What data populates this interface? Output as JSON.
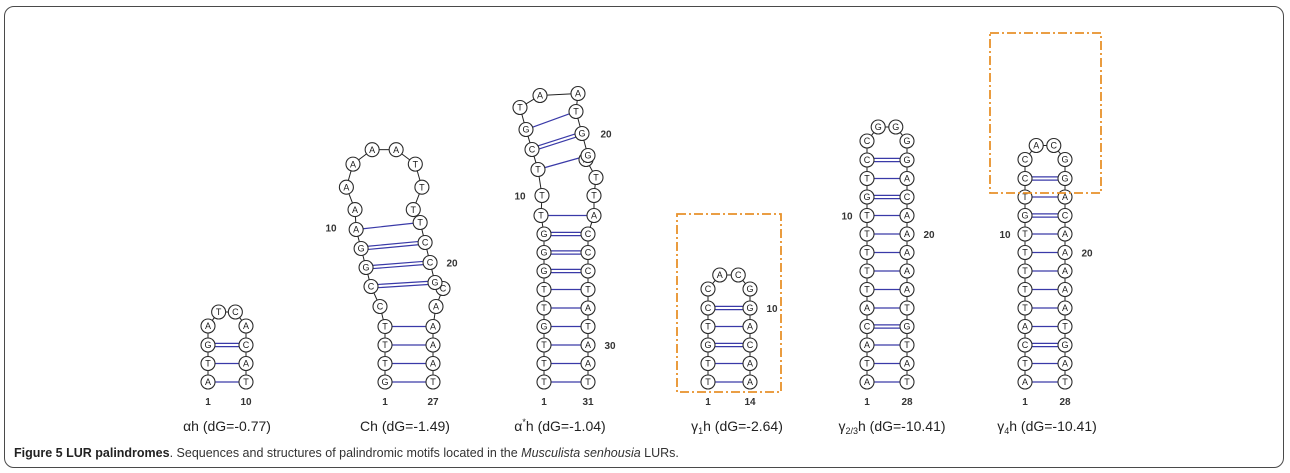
{
  "caption": {
    "label": "Figure 5 LUR palindromes",
    "text_before": ". Sequences and structures of palindromic motifs located in the ",
    "species": "Musculista senhousia",
    "text_after": " LURs."
  },
  "colors": {
    "base_pair": "#3a3aa8",
    "highlight_box": "#e8912a",
    "backbone": "#222222"
  },
  "structures": [
    {
      "id": "alpha-h",
      "label_main": "αh",
      "label_dg": " (dG=-0.77)",
      "highlight": false,
      "stem": [
        [
          "A",
          "T"
        ],
        [
          "T",
          "A"
        ],
        [
          "G",
          "C"
        ]
      ],
      "pair_types": [
        "single",
        "single",
        "double"
      ],
      "loop": [
        "A",
        "T",
        "C",
        "A"
      ],
      "position_labels": [
        "1",
        "10"
      ],
      "side_labels": []
    },
    {
      "id": "c-h",
      "label_main": "Ch",
      "label_dg": " (dG=-1.49)",
      "highlight": false,
      "stem": [
        [
          "G",
          "T"
        ],
        [
          "T",
          "A"
        ],
        [
          "T",
          "A"
        ],
        [
          "T",
          "A"
        ]
      ],
      "pair_types": [
        "single",
        "single",
        "single",
        "single"
      ],
      "inner_loop": {
        "left": [
          "C"
        ],
        "right": [
          "A",
          "C"
        ]
      },
      "stem2": [
        [
          "C",
          "G"
        ],
        [
          "G",
          "C"
        ],
        [
          "G",
          "C"
        ],
        [
          "A",
          "T"
        ]
      ],
      "pair_types2": [
        "double",
        "double",
        "double",
        "single"
      ],
      "loop": [
        "A",
        "A",
        "A",
        "A",
        "A",
        "T",
        "T",
        "T"
      ],
      "position_labels": [
        "1",
        "27"
      ],
      "side_labels": [
        "10",
        "20"
      ]
    },
    {
      "id": "alpha-star-h",
      "label_main": "α",
      "label_sup": "*",
      "label_after": "h",
      "label_dg": " (dG=-1.04)",
      "highlight": false,
      "stem": [
        [
          "T",
          "T"
        ],
        [
          "T",
          "A"
        ],
        [
          "T",
          "A"
        ],
        [
          "G",
          "T"
        ],
        [
          "T",
          "A"
        ],
        [
          "T",
          "T"
        ],
        [
          "G",
          "C"
        ],
        [
          "G",
          "C"
        ],
        [
          "G",
          "C"
        ],
        [
          "T",
          "A"
        ]
      ],
      "pair_types": [
        "single",
        "single",
        "single",
        "single",
        "single",
        "single",
        "double",
        "double",
        "double",
        "single"
      ],
      "inner_loop": {
        "left": [
          "T"
        ],
        "right": [
          "T",
          "T",
          "A"
        ]
      },
      "stem2": [
        [
          "T",
          "G"
        ],
        [
          "C",
          "G"
        ],
        [
          "G",
          "T"
        ]
      ],
      "pair_types2": [
        "single",
        "double",
        "single"
      ],
      "loop": [
        "T",
        "A",
        "A"
      ],
      "position_labels": [
        "1",
        "31"
      ],
      "side_labels": [
        "10",
        "20",
        "30"
      ]
    },
    {
      "id": "gamma1-h",
      "label_main": "γ",
      "label_sub": "1",
      "label_after": "h",
      "label_dg": " (dG=-2.64)",
      "highlight": true,
      "stem": [
        [
          "T",
          "A"
        ],
        [
          "T",
          "A"
        ],
        [
          "G",
          "C"
        ],
        [
          "T",
          "A"
        ],
        [
          "C",
          "G"
        ]
      ],
      "pair_types": [
        "single",
        "single",
        "double",
        "single",
        "double"
      ],
      "loop": [
        "C",
        "A",
        "C",
        "G"
      ],
      "position_labels": [
        "1",
        "14"
      ],
      "side_labels": [
        "10"
      ]
    },
    {
      "id": "gamma23-h",
      "label_main": "γ",
      "label_sub": "2/3",
      "label_after": "h",
      "label_dg": " (dG=-10.41)",
      "highlight": false,
      "stem": [
        [
          "A",
          "T"
        ],
        [
          "T",
          "A"
        ],
        [
          "A",
          "T"
        ],
        [
          "C",
          "G"
        ],
        [
          "A",
          "T"
        ],
        [
          "T",
          "A"
        ],
        [
          "T",
          "A"
        ],
        [
          "T",
          "A"
        ],
        [
          "T",
          "A"
        ],
        [
          "T",
          "A"
        ],
        [
          "G",
          "C"
        ],
        [
          "T",
          "A"
        ],
        [
          "C",
          "G"
        ]
      ],
      "pair_types": [
        "single",
        "single",
        "single",
        "double",
        "single",
        "single",
        "single",
        "single",
        "single",
        "single",
        "double",
        "single",
        "double"
      ],
      "loop": [
        "C",
        "G",
        "G",
        "G"
      ],
      "position_labels": [
        "1",
        "28"
      ],
      "side_labels": [
        "10",
        "20"
      ]
    },
    {
      "id": "gamma4-h",
      "label_main": "γ",
      "label_sub": "4",
      "label_after": "h",
      "label_dg": " (dG=-10.41)",
      "highlight": true,
      "stem": [
        [
          "A",
          "T"
        ],
        [
          "T",
          "A"
        ],
        [
          "C",
          "G"
        ],
        [
          "A",
          "T"
        ],
        [
          "T",
          "A"
        ],
        [
          "T",
          "A"
        ],
        [
          "T",
          "A"
        ],
        [
          "T",
          "A"
        ],
        [
          "T",
          "A"
        ],
        [
          "G",
          "C"
        ],
        [
          "T",
          "A"
        ],
        [
          "C",
          "G"
        ]
      ],
      "pair_types": [
        "single",
        "single",
        "double",
        "single",
        "single",
        "single",
        "single",
        "single",
        "single",
        "double",
        "single",
        "double"
      ],
      "loop": [
        "C",
        "A",
        "C",
        "G"
      ],
      "position_labels": [
        "1",
        "28"
      ],
      "side_labels": [
        "10",
        "20"
      ]
    }
  ]
}
